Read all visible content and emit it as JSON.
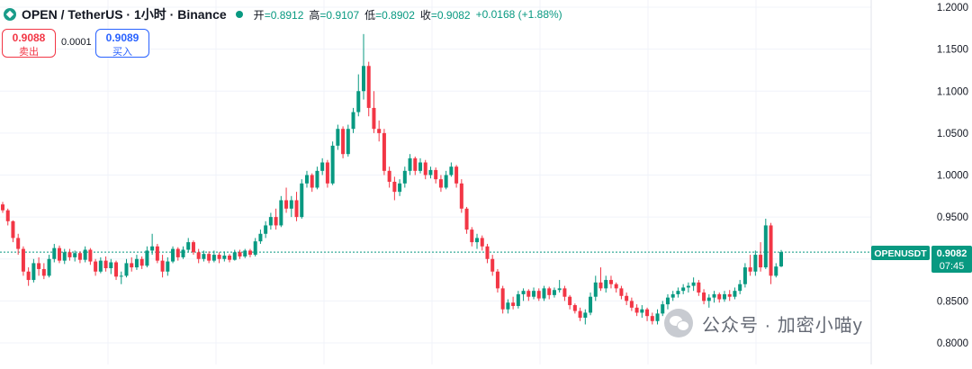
{
  "header": {
    "title": "OPEN / TetherUS · 1小时 · Binance",
    "open_label": "开",
    "open_value": "=0.8912",
    "high_label": "高",
    "high_value": "=0.9107",
    "low_label": "低",
    "low_value": "=0.8902",
    "close_label": "收",
    "close_value": "=0.9082",
    "change": "+0.0168 (+1.88%)"
  },
  "trade": {
    "sell_price": "0.9088",
    "sell_label": "卖出",
    "spread": "0.0001",
    "buy_price": "0.9089",
    "buy_label": "买入"
  },
  "price_label": {
    "symbol": "OPENUSDT",
    "price": "0.9082",
    "countdown": "07:45"
  },
  "watermark": {
    "text": "公众号 · 加密小喵y"
  },
  "colors": {
    "up": "#089981",
    "down": "#f23645",
    "grid": "#f0f3fa",
    "axis_text": "#131722"
  },
  "chart_data": {
    "type": "candlestick",
    "y_axis": {
      "ticks": [
        "1.2000",
        "1.1500",
        "1.1000",
        "1.0500",
        "1.0000",
        "0.9500",
        "0.9000",
        "0.8500",
        "0.8000"
      ],
      "range": [
        0.795,
        1.2
      ],
      "position": "right"
    },
    "last_price": 0.9082,
    "candles": [
      [
        0.965,
        0.968,
        0.955,
        0.958
      ],
      [
        0.958,
        0.96,
        0.94,
        0.945
      ],
      [
        0.945,
        0.946,
        0.92,
        0.925
      ],
      [
        0.925,
        0.93,
        0.905,
        0.912
      ],
      [
        0.912,
        0.915,
        0.88,
        0.885
      ],
      [
        0.885,
        0.89,
        0.868,
        0.875
      ],
      [
        0.875,
        0.9,
        0.872,
        0.895
      ],
      [
        0.895,
        0.902,
        0.88,
        0.888
      ],
      [
        0.888,
        0.895,
        0.876,
        0.88
      ],
      [
        0.88,
        0.905,
        0.878,
        0.9
      ],
      [
        0.9,
        0.918,
        0.896,
        0.913
      ],
      [
        0.913,
        0.916,
        0.895,
        0.898
      ],
      [
        0.898,
        0.912,
        0.894,
        0.908
      ],
      [
        0.908,
        0.912,
        0.898,
        0.902
      ],
      [
        0.902,
        0.91,
        0.897,
        0.907
      ],
      [
        0.907,
        0.909,
        0.895,
        0.899
      ],
      [
        0.899,
        0.915,
        0.896,
        0.911
      ],
      [
        0.911,
        0.913,
        0.893,
        0.897
      ],
      [
        0.897,
        0.9,
        0.88,
        0.885
      ],
      [
        0.885,
        0.902,
        0.883,
        0.898
      ],
      [
        0.898,
        0.903,
        0.885,
        0.889
      ],
      [
        0.889,
        0.9,
        0.882,
        0.896
      ],
      [
        0.896,
        0.898,
        0.875,
        0.879
      ],
      [
        0.879,
        0.885,
        0.87,
        0.88
      ],
      [
        0.88,
        0.9,
        0.878,
        0.895
      ],
      [
        0.895,
        0.902,
        0.885,
        0.89
      ],
      [
        0.89,
        0.905,
        0.887,
        0.9
      ],
      [
        0.9,
        0.903,
        0.888,
        0.892
      ],
      [
        0.892,
        0.915,
        0.89,
        0.91
      ],
      [
        0.91,
        0.93,
        0.905,
        0.915
      ],
      [
        0.915,
        0.918,
        0.895,
        0.898
      ],
      [
        0.898,
        0.905,
        0.878,
        0.885
      ],
      [
        0.885,
        0.902,
        0.88,
        0.897
      ],
      [
        0.897,
        0.915,
        0.895,
        0.912
      ],
      [
        0.912,
        0.914,
        0.898,
        0.902
      ],
      [
        0.902,
        0.915,
        0.9,
        0.911
      ],
      [
        0.911,
        0.925,
        0.908,
        0.92
      ],
      [
        0.92,
        0.922,
        0.905,
        0.908
      ],
      [
        0.908,
        0.912,
        0.895,
        0.9
      ],
      [
        0.9,
        0.91,
        0.897,
        0.906
      ],
      [
        0.906,
        0.909,
        0.895,
        0.898
      ],
      [
        0.898,
        0.91,
        0.896,
        0.905
      ],
      [
        0.905,
        0.908,
        0.895,
        0.9
      ],
      [
        0.9,
        0.909,
        0.897,
        0.904
      ],
      [
        0.904,
        0.906,
        0.896,
        0.899
      ],
      [
        0.899,
        0.911,
        0.898,
        0.908
      ],
      [
        0.908,
        0.911,
        0.9,
        0.903
      ],
      [
        0.903,
        0.912,
        0.901,
        0.91
      ],
      [
        0.91,
        0.912,
        0.902,
        0.905
      ],
      [
        0.905,
        0.925,
        0.903,
        0.921
      ],
      [
        0.921,
        0.935,
        0.918,
        0.93
      ],
      [
        0.93,
        0.945,
        0.925,
        0.94
      ],
      [
        0.94,
        0.955,
        0.935,
        0.95
      ],
      [
        0.95,
        0.96,
        0.935,
        0.94
      ],
      [
        0.94,
        0.975,
        0.938,
        0.97
      ],
      [
        0.97,
        0.985,
        0.955,
        0.96
      ],
      [
        0.96,
        0.975,
        0.95,
        0.97
      ],
      [
        0.97,
        0.98,
        0.945,
        0.95
      ],
      [
        0.95,
        0.995,
        0.948,
        0.99
      ],
      [
        0.99,
        1.005,
        0.985,
        1.0
      ],
      [
        1.0,
        1.002,
        0.98,
        0.985
      ],
      [
        0.985,
        1.01,
        0.983,
        1.005
      ],
      [
        1.005,
        1.02,
        1.0,
        1.015
      ],
      [
        1.015,
        1.018,
        0.985,
        0.99
      ],
      [
        0.99,
        1.04,
        0.988,
        1.035
      ],
      [
        1.035,
        1.06,
        1.03,
        1.055
      ],
      [
        1.055,
        1.058,
        1.02,
        1.025
      ],
      [
        1.025,
        1.06,
        1.022,
        1.055
      ],
      [
        1.055,
        1.08,
        1.05,
        1.075
      ],
      [
        1.075,
        1.12,
        1.07,
        1.1
      ],
      [
        1.1,
        1.168,
        1.09,
        1.13
      ],
      [
        1.13,
        1.135,
        1.07,
        1.08
      ],
      [
        1.08,
        1.1,
        1.05,
        1.055
      ],
      [
        1.055,
        1.065,
        1.04,
        1.05
      ],
      [
        1.05,
        1.055,
        1.0,
        1.005
      ],
      [
        1.005,
        1.01,
        0.985,
        0.992
      ],
      [
        0.992,
        0.998,
        0.97,
        0.98
      ],
      [
        0.98,
        0.995,
        0.975,
        0.99
      ],
      [
        0.99,
        1.01,
        0.985,
        1.005
      ],
      [
        1.005,
        1.025,
        1.0,
        1.02
      ],
      [
        1.02,
        1.022,
        1.0,
        1.005
      ],
      [
        1.005,
        1.02,
        1.002,
        1.015
      ],
      [
        1.015,
        1.018,
        0.995,
        1.0
      ],
      [
        1.0,
        1.01,
        0.996,
        1.006
      ],
      [
        1.006,
        1.009,
        0.99,
        0.995
      ],
      [
        0.995,
        1.0,
        0.98,
        0.985
      ],
      [
        0.985,
        1.005,
        0.983,
        1.0
      ],
      [
        1.0,
        1.015,
        0.998,
        1.01
      ],
      [
        1.01,
        1.012,
        0.985,
        0.99
      ],
      [
        0.99,
        0.995,
        0.955,
        0.96
      ],
      [
        0.96,
        0.962,
        0.93,
        0.935
      ],
      [
        0.935,
        0.938,
        0.915,
        0.92
      ],
      [
        0.92,
        0.93,
        0.912,
        0.925
      ],
      [
        0.925,
        0.928,
        0.91,
        0.915
      ],
      [
        0.915,
        0.918,
        0.895,
        0.9
      ],
      [
        0.9,
        0.905,
        0.88,
        0.885
      ],
      [
        0.885,
        0.888,
        0.86,
        0.865
      ],
      [
        0.865,
        0.868,
        0.835,
        0.84
      ],
      [
        0.84,
        0.852,
        0.835,
        0.848
      ],
      [
        0.848,
        0.855,
        0.84,
        0.844
      ],
      [
        0.844,
        0.862,
        0.841,
        0.858
      ],
      [
        0.858,
        0.865,
        0.85,
        0.862
      ],
      [
        0.862,
        0.864,
        0.85,
        0.855
      ],
      [
        0.855,
        0.866,
        0.852,
        0.862
      ],
      [
        0.862,
        0.865,
        0.85,
        0.853
      ],
      [
        0.853,
        0.868,
        0.85,
        0.865
      ],
      [
        0.865,
        0.867,
        0.852,
        0.857
      ],
      [
        0.857,
        0.866,
        0.854,
        0.863
      ],
      [
        0.863,
        0.875,
        0.86,
        0.865
      ],
      [
        0.865,
        0.868,
        0.85,
        0.855
      ],
      [
        0.855,
        0.857,
        0.84,
        0.845
      ],
      [
        0.845,
        0.847,
        0.835,
        0.838
      ],
      [
        0.838,
        0.842,
        0.826,
        0.83
      ],
      [
        0.83,
        0.84,
        0.822,
        0.836
      ],
      [
        0.836,
        0.86,
        0.833,
        0.855
      ],
      [
        0.855,
        0.88,
        0.85,
        0.872
      ],
      [
        0.872,
        0.89,
        0.862,
        0.865
      ],
      [
        0.865,
        0.88,
        0.86,
        0.875
      ],
      [
        0.875,
        0.88,
        0.865,
        0.87
      ],
      [
        0.87,
        0.872,
        0.86,
        0.865
      ],
      [
        0.865,
        0.868,
        0.852,
        0.856
      ],
      [
        0.856,
        0.86,
        0.845,
        0.85
      ],
      [
        0.85,
        0.854,
        0.838,
        0.842
      ],
      [
        0.842,
        0.846,
        0.832,
        0.836
      ],
      [
        0.836,
        0.845,
        0.83,
        0.84
      ],
      [
        0.84,
        0.842,
        0.826,
        0.832
      ],
      [
        0.832,
        0.836,
        0.822,
        0.826
      ],
      [
        0.826,
        0.84,
        0.822,
        0.835
      ],
      [
        0.835,
        0.85,
        0.832,
        0.846
      ],
      [
        0.846,
        0.858,
        0.84,
        0.854
      ],
      [
        0.854,
        0.862,
        0.85,
        0.858
      ],
      [
        0.858,
        0.866,
        0.854,
        0.862
      ],
      [
        0.862,
        0.87,
        0.858,
        0.866
      ],
      [
        0.866,
        0.872,
        0.86,
        0.868
      ],
      [
        0.868,
        0.878,
        0.862,
        0.872
      ],
      [
        0.872,
        0.875,
        0.856,
        0.86
      ],
      [
        0.86,
        0.864,
        0.846,
        0.85
      ],
      [
        0.85,
        0.858,
        0.842,
        0.854
      ],
      [
        0.854,
        0.862,
        0.848,
        0.858
      ],
      [
        0.858,
        0.86,
        0.848,
        0.852
      ],
      [
        0.852,
        0.862,
        0.849,
        0.858
      ],
      [
        0.858,
        0.863,
        0.85,
        0.855
      ],
      [
        0.855,
        0.866,
        0.852,
        0.862
      ],
      [
        0.862,
        0.875,
        0.858,
        0.87
      ],
      [
        0.87,
        0.895,
        0.866,
        0.89
      ],
      [
        0.89,
        0.905,
        0.88,
        0.885
      ],
      [
        0.885,
        0.91,
        0.88,
        0.905
      ],
      [
        0.905,
        0.92,
        0.885,
        0.89
      ],
      [
        0.89,
        0.948,
        0.888,
        0.94
      ],
      [
        0.94,
        0.943,
        0.87,
        0.88
      ],
      [
        0.88,
        0.895,
        0.878,
        0.891
      ],
      [
        0.8912,
        0.9107,
        0.8902,
        0.9082
      ]
    ]
  }
}
